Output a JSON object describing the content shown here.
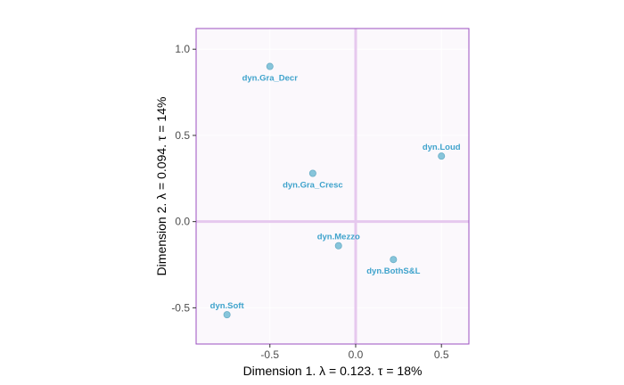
{
  "chart_data": {
    "type": "scatter",
    "xlabel": "Dimension 1.   λ = 0.123.  τ = 18%",
    "ylabel": "Dimension 2.   λ = 0.094.  τ = 14%",
    "xlim": [
      -0.93,
      0.66
    ],
    "ylim": [
      -0.71,
      1.12
    ],
    "x_ticks": [
      -0.5,
      0.0,
      0.5
    ],
    "x_tick_labels": [
      "-0.5",
      "0.0",
      "0.5"
    ],
    "y_ticks": [
      1.0,
      0.5,
      0.0,
      -0.5
    ],
    "y_tick_labels": [
      "1.0",
      "0.5",
      "0.0",
      "-0.5"
    ],
    "grid": true,
    "points": [
      {
        "label": "dyn.Gra_Decr",
        "x": -0.5,
        "y": 0.9,
        "label_pos": "below"
      },
      {
        "label": "dyn.Loud",
        "x": 0.5,
        "y": 0.38,
        "label_pos": "above"
      },
      {
        "label": "dyn.Gra_Cresc",
        "x": -0.25,
        "y": 0.28,
        "label_pos": "below"
      },
      {
        "label": "dyn.Mezzo",
        "x": -0.1,
        "y": -0.14,
        "label_pos": "above"
      },
      {
        "label": "dyn.BothS&L",
        "x": 0.22,
        "y": -0.22,
        "label_pos": "below"
      },
      {
        "label": "dyn.Soft",
        "x": -0.75,
        "y": -0.54,
        "label_pos": "above"
      }
    ],
    "colors": {
      "point": "#87c5db",
      "point_edge": "#6aaec6",
      "label": "#3fa3cc",
      "panel_bg": "#fbf8fc",
      "panel_border": "#9b4fc0",
      "zero_line": "#e6c8ee",
      "grid_line": "#ffffff"
    }
  }
}
